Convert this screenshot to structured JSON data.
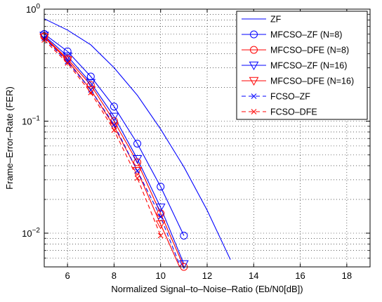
{
  "chart_data": {
    "type": "line",
    "title": "",
    "xlabel": "Normalized Signal–to–Noise–Ratio (Eb/N0[dB])",
    "ylabel": "Frame–Error–Rate (FER)",
    "xlim": [
      5,
      19
    ],
    "ylim": [
      0.005,
      1
    ],
    "yscale": "log",
    "grid": true,
    "legend_position": "top-right",
    "x_ticks": [
      6,
      8,
      10,
      12,
      14,
      16,
      18
    ],
    "y_ticks": [
      {
        "value": 1,
        "base": "10",
        "exp": "0"
      },
      {
        "value": 0.1,
        "base": "10",
        "exp": "−1"
      },
      {
        "value": 0.01,
        "base": "10",
        "exp": "−2"
      }
    ],
    "series": [
      {
        "name": "ZF",
        "color": "#0000ff",
        "dash": "solid",
        "marker": "none",
        "x": [
          5,
          6,
          7,
          8,
          9,
          10,
          11,
          12,
          13
        ],
        "y": [
          0.82,
          0.65,
          0.48,
          0.3,
          0.17,
          0.085,
          0.039,
          0.016,
          0.0058
        ]
      },
      {
        "name": "MFCSO–ZF (N=8)",
        "color": "#0000ff",
        "dash": "solid",
        "marker": "circle",
        "x": [
          5,
          6,
          7,
          8,
          9,
          10,
          11
        ],
        "y": [
          0.6,
          0.42,
          0.25,
          0.135,
          0.063,
          0.026,
          0.0095
        ]
      },
      {
        "name": "MFCSO–DFE (N=8)",
        "color": "#ff0000",
        "dash": "solid",
        "marker": "circle",
        "x": [
          5,
          6,
          7,
          8,
          9,
          10,
          11
        ],
        "y": [
          0.57,
          0.36,
          0.21,
          0.1,
          0.043,
          0.015,
          0.005
        ]
      },
      {
        "name": "MFCSO–ZF (N=16)",
        "color": "#0000ff",
        "dash": "solid",
        "marker": "triangle",
        "x": [
          5,
          6,
          7,
          8,
          9,
          10,
          11
        ],
        "y": [
          0.58,
          0.38,
          0.22,
          0.11,
          0.046,
          0.017,
          0.0053
        ]
      },
      {
        "name": "MFCSO–DFE (N=16)",
        "color": "#ff0000",
        "dash": "solid",
        "marker": "triangle",
        "x": [
          5,
          6,
          7,
          8,
          9,
          10,
          11
        ],
        "y": [
          0.56,
          0.35,
          0.19,
          0.09,
          0.036,
          0.012,
          0.0041
        ]
      },
      {
        "name": "FCSO–ZF",
        "color": "#0000ff",
        "dash": "dashed",
        "marker": "x",
        "x": [
          5,
          6,
          7,
          8,
          9,
          10,
          11
        ],
        "y": [
          0.55,
          0.34,
          0.19,
          0.093,
          0.036,
          0.014,
          0.0042
        ]
      },
      {
        "name": "FCSO–DFE",
        "color": "#ff0000",
        "dash": "dashed",
        "marker": "x",
        "x": [
          5,
          6,
          7,
          8,
          9,
          10
        ],
        "y": [
          0.53,
          0.33,
          0.18,
          0.083,
          0.031,
          0.0095
        ]
      }
    ]
  }
}
